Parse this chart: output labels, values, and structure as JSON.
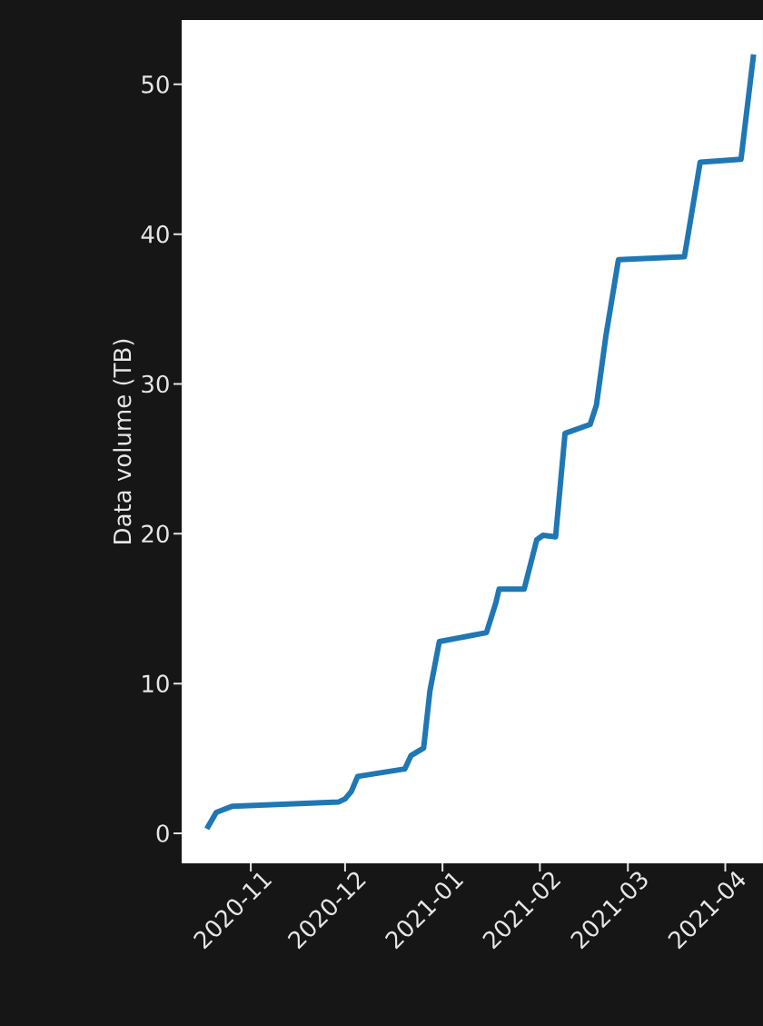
{
  "chart_data": {
    "type": "line",
    "ylabel": "Data volume (TB)",
    "color": "#1f77b4",
    "x": [
      "2020-10-18",
      "2020-10-21",
      "2020-10-26",
      "2020-11-29",
      "2020-12-01",
      "2020-12-03",
      "2020-12-05",
      "2020-12-20",
      "2020-12-22",
      "2020-12-26",
      "2020-12-28",
      "2020-12-31",
      "2021-01-15",
      "2021-01-18",
      "2021-01-19",
      "2021-01-27",
      "2021-01-31",
      "2021-02-02",
      "2021-02-06",
      "2021-02-09",
      "2021-02-17",
      "2021-02-19",
      "2021-02-22",
      "2021-02-26",
      "2021-03-19",
      "2021-03-24",
      "2021-04-06",
      "2021-04-10"
    ],
    "values": [
      0.3,
      1.4,
      1.8,
      2.1,
      2.3,
      2.8,
      3.8,
      4.3,
      5.2,
      5.7,
      9.5,
      12.8,
      13.4,
      15.4,
      16.3,
      16.3,
      19.6,
      19.9,
      19.8,
      26.7,
      27.3,
      28.6,
      33.2,
      38.3,
      38.5,
      44.8,
      45.0,
      52.0
    ],
    "xlim": [
      "2020-10-10",
      "2021-04-13"
    ],
    "ylim": [
      -2,
      54.3
    ],
    "xticks": [
      {
        "value": "2020-11-01",
        "label": "2020-11"
      },
      {
        "value": "2020-12-01",
        "label": "2020-12"
      },
      {
        "value": "2021-01-01",
        "label": "2021-01"
      },
      {
        "value": "2021-02-01",
        "label": "2021-02"
      },
      {
        "value": "2021-03-01",
        "label": "2021-03"
      },
      {
        "value": "2021-04-01",
        "label": "2021-04"
      }
    ],
    "yticks": [
      0,
      10,
      20,
      30,
      40,
      50
    ]
  }
}
